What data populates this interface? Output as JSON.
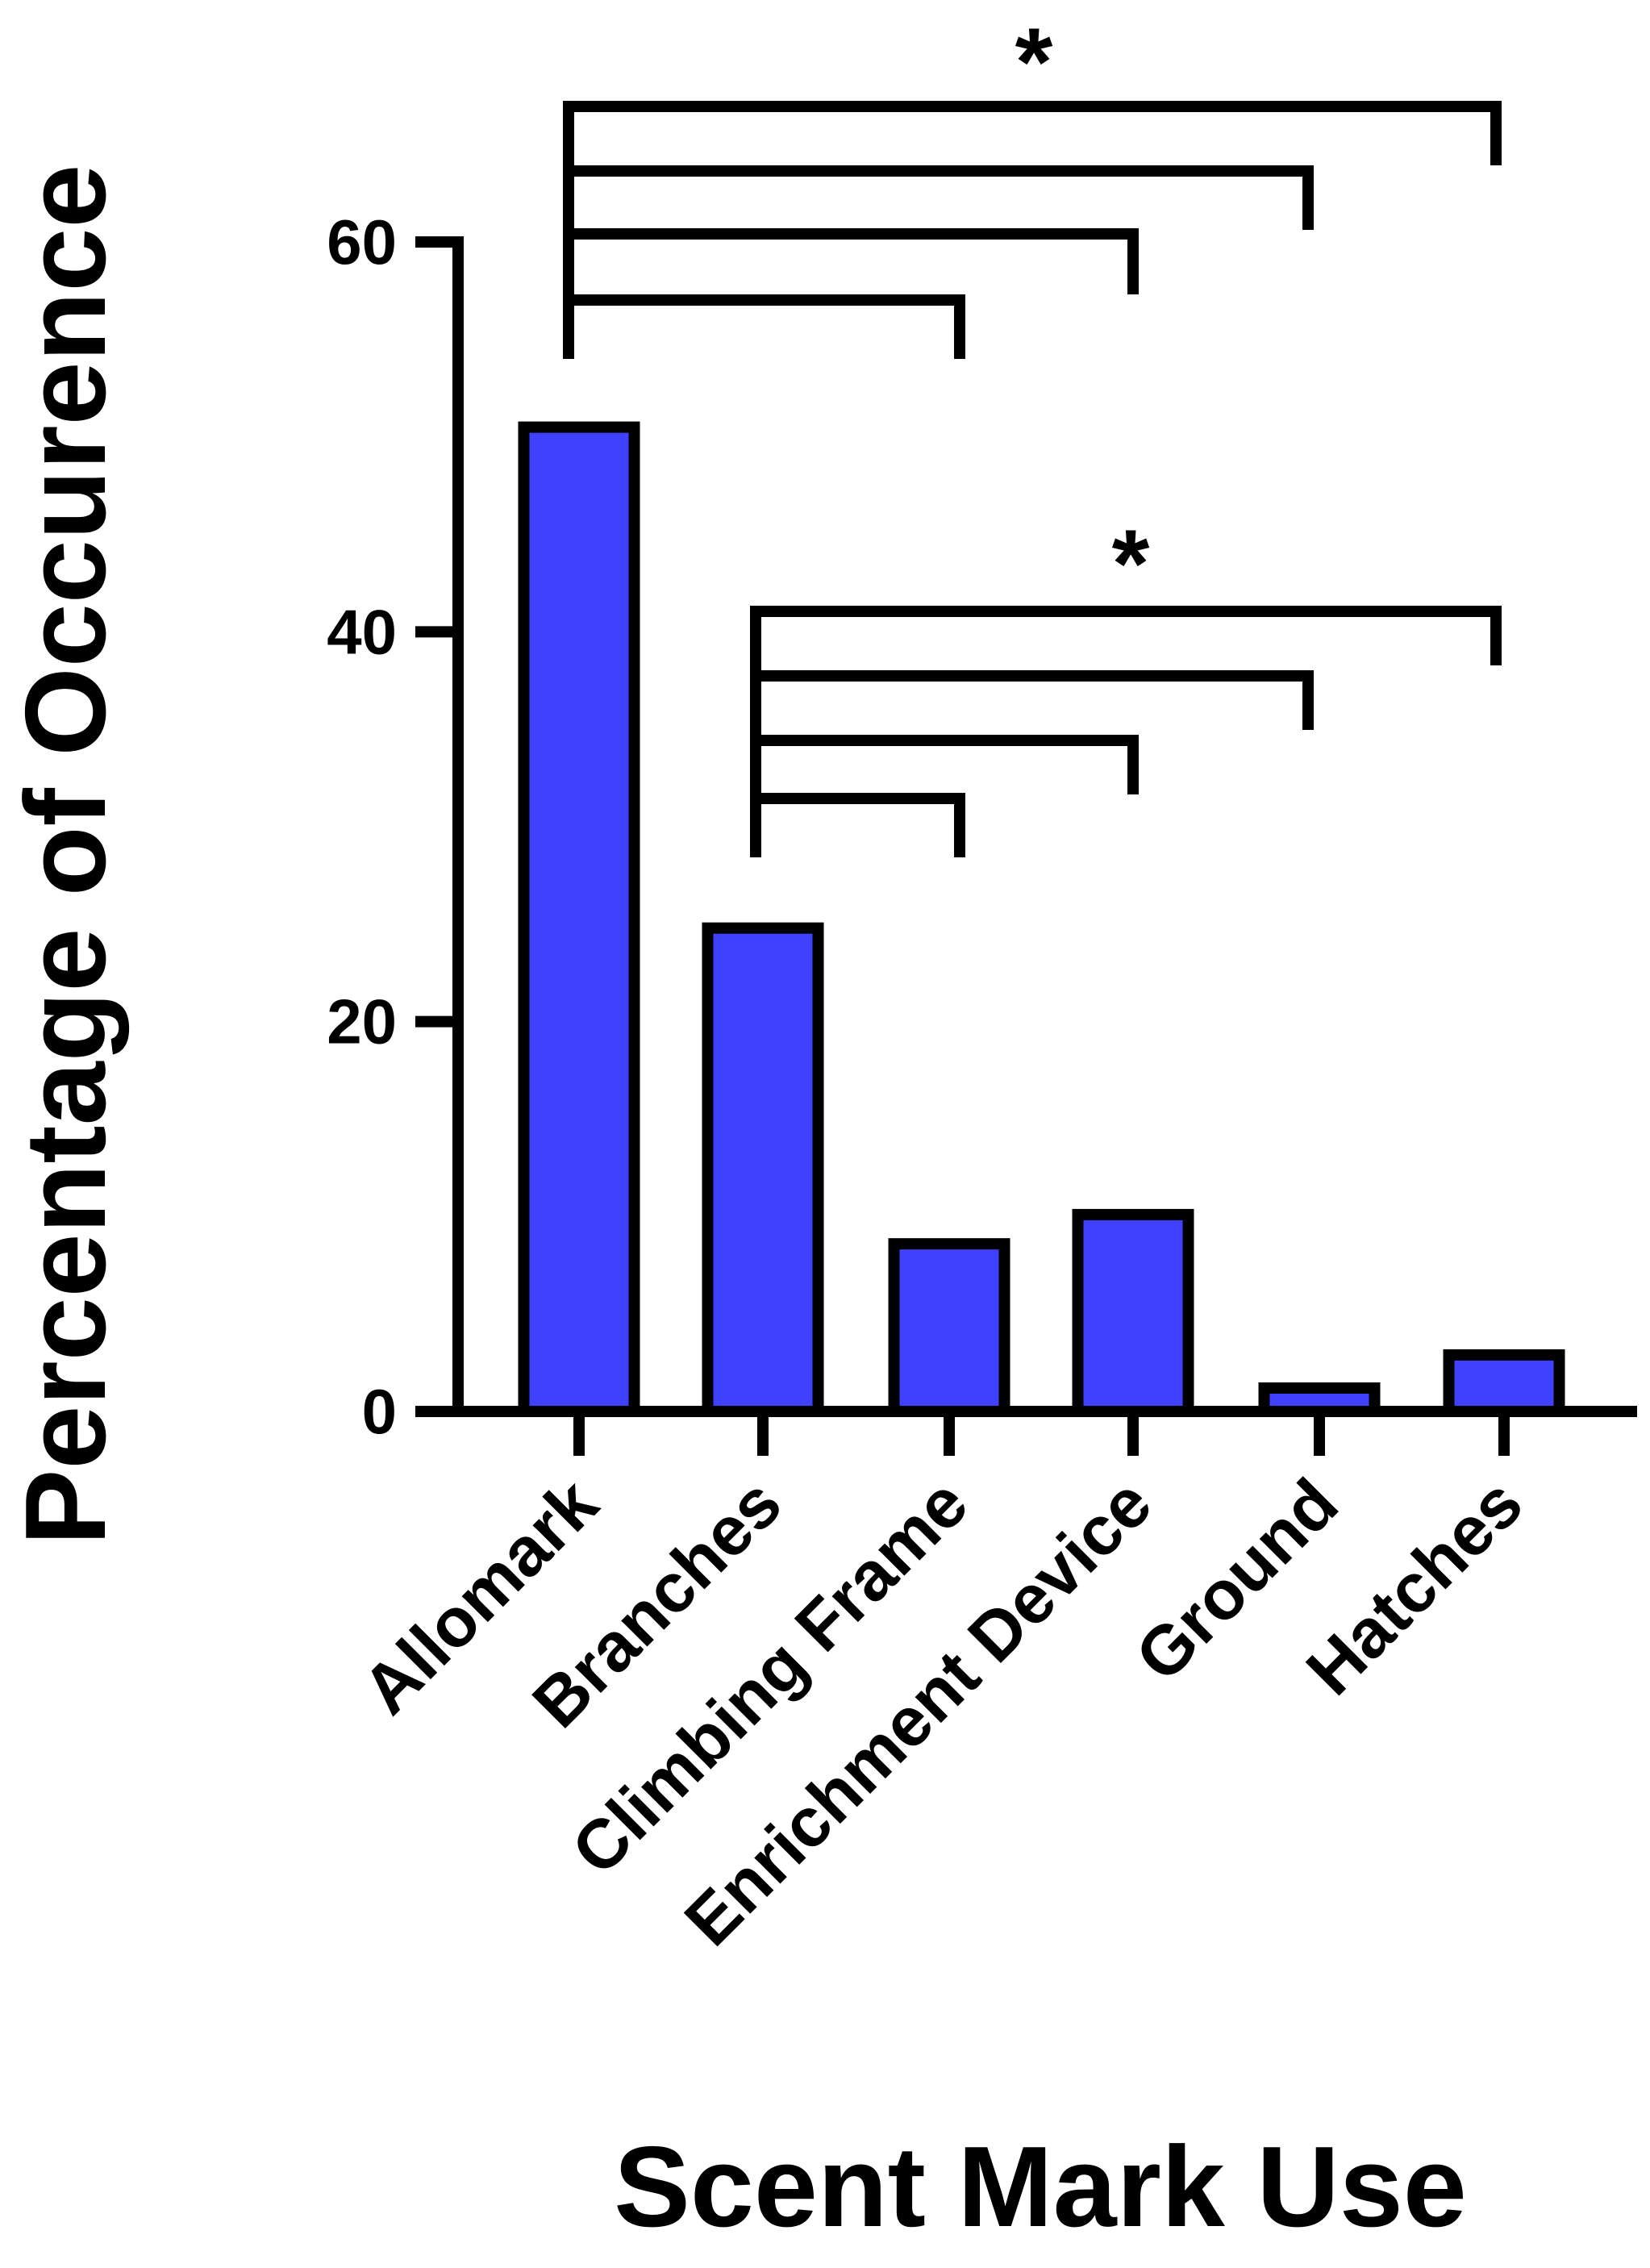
{
  "chart_data": {
    "type": "bar",
    "categories": [
      "Allomark",
      "Branches",
      "Climbing Frame",
      "Enrichment Device",
      "Ground",
      "Hatches"
    ],
    "values": [
      50.5,
      24.8,
      8.6,
      10.1,
      1.2,
      2.9
    ],
    "title": "",
    "xlabel": "Scent Mark Use",
    "ylabel": "Percentage of Occurence",
    "ylim": [
      0,
      60
    ],
    "yticks": [
      "0",
      "20",
      "40",
      "60"
    ],
    "bar_color": "#4040ff",
    "edge_color": "#000000",
    "legend": "none",
    "grid": false,
    "significance": [
      {
        "marker": "*",
        "from": "Allomark",
        "to": [
          "Climbing Frame",
          "Enrichment Device",
          "Ground",
          "Hatches"
        ]
      },
      {
        "marker": "*",
        "from": "Branches",
        "to": [
          "Climbing Frame",
          "Enrichment Device",
          "Ground",
          "Hatches"
        ]
      }
    ]
  }
}
